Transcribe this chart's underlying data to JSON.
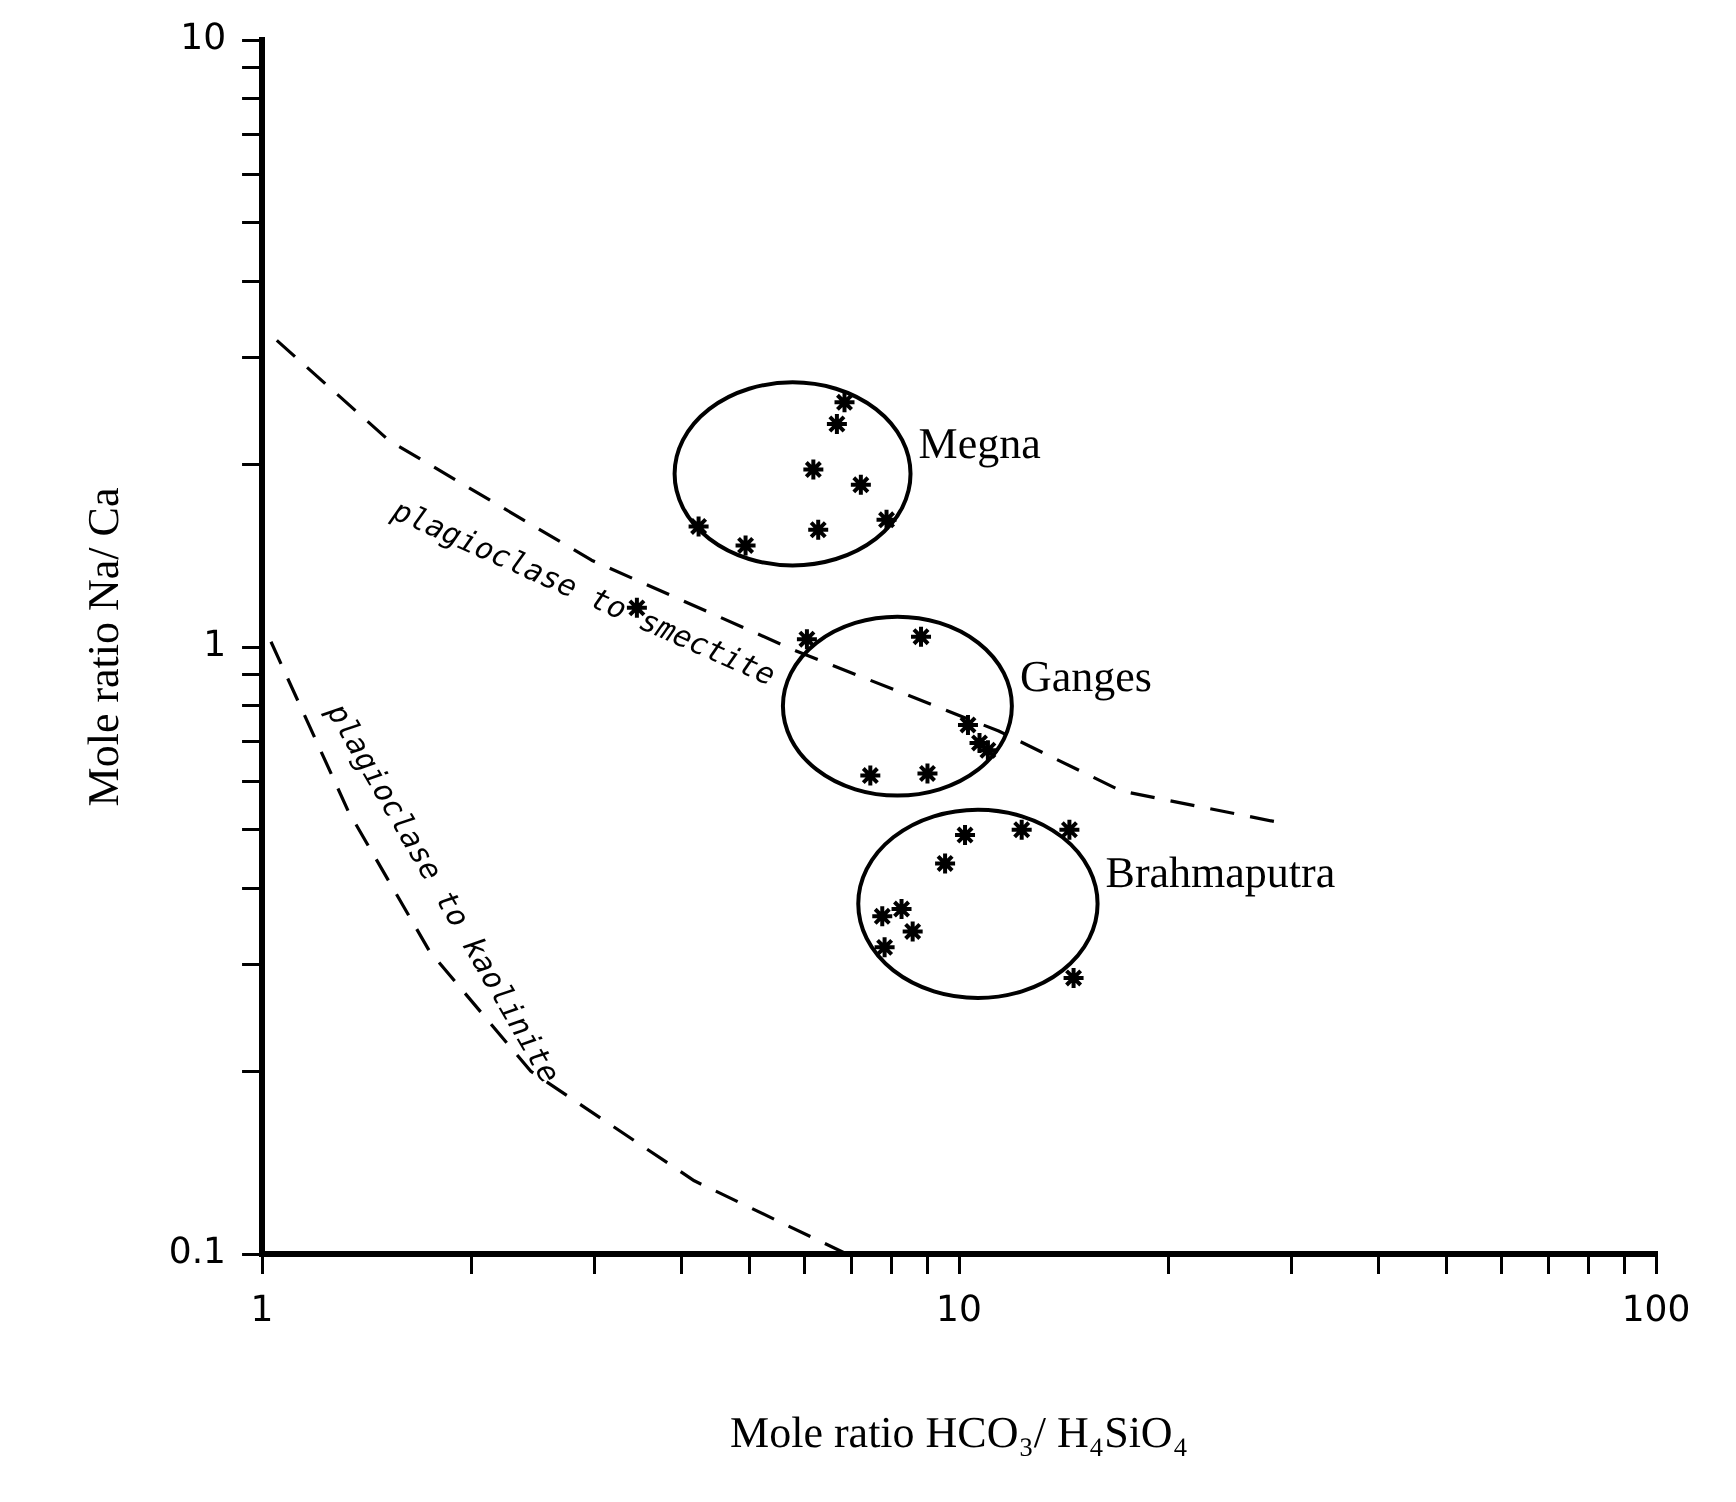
{
  "chart_data": {
    "type": "scatter",
    "xlabel": "Mole ratio HCO₃/ H₄SiO₄",
    "ylabel": "Mole ratio Na/ Ca",
    "log": "xy",
    "grid": false,
    "legend": false,
    "marker": "cross",
    "xlim": [
      1,
      100
    ],
    "ylim": [
      0.1,
      10
    ],
    "xticks": [
      1,
      {
        "value": 2,
        "label": null
      },
      {
        "value": 3,
        "label": null
      },
      {
        "value": 4,
        "label": null
      },
      {
        "value": 5,
        "label": null
      },
      {
        "value": 6,
        "label": null
      },
      {
        "value": 7,
        "label": null
      },
      {
        "value": 8,
        "label": null
      },
      {
        "value": 9,
        "label": null
      },
      10,
      {
        "value": 20,
        "label": null
      },
      {
        "value": 30,
        "label": null
      },
      {
        "value": 40,
        "label": null
      },
      {
        "value": 50,
        "label": null
      },
      {
        "value": 60,
        "label": null
      },
      {
        "value": 70,
        "label": null
      },
      {
        "value": 80,
        "label": null
      },
      {
        "value": 90,
        "label": null
      },
      100
    ],
    "yticks": [
      0.1,
      {
        "value": 0.2,
        "label": null
      },
      {
        "value": 0.3,
        "label": null
      },
      {
        "value": 0.4,
        "label": null
      },
      {
        "value": 0.5,
        "label": null
      },
      {
        "value": 0.6,
        "label": null
      },
      {
        "value": 0.7,
        "label": null
      },
      {
        "value": 0.8,
        "label": null
      },
      {
        "value": 0.9,
        "label": null
      },
      1,
      {
        "value": 2,
        "label": null
      },
      {
        "value": 3,
        "label": null
      },
      {
        "value": 4,
        "label": null
      },
      {
        "value": 5,
        "label": null
      },
      {
        "value": 6,
        "label": null
      },
      {
        "value": 7,
        "label": null
      },
      {
        "value": 8,
        "label": null
      },
      {
        "value": 9,
        "label": null
      },
      10
    ],
    "series": [
      {
        "name": "Megna",
        "color": "#000000",
        "x": [
          6.85,
          6.68,
          6.18,
          7.23,
          4.23,
          4.94,
          6.28,
          7.87
        ],
        "values": [
          2.53,
          2.33,
          1.96,
          1.85,
          1.58,
          1.47,
          1.56,
          1.62
        ]
      },
      {
        "name": "Ganges",
        "color": "#000000",
        "x": [
          6.05,
          8.82,
          10.3,
          11.0,
          10.7,
          7.46,
          9.01
        ],
        "values": [
          1.03,
          1.04,
          0.744,
          0.676,
          0.695,
          0.614,
          0.619
        ]
      },
      {
        "name": "Brahmaputra",
        "color": "#000000",
        "x": [
          10.2,
          12.3,
          14.4,
          9.55,
          8.27,
          7.76,
          8.58,
          7.82,
          14.6
        ],
        "values": [
          0.49,
          0.5,
          0.5,
          0.44,
          0.37,
          0.36,
          0.34,
          0.32,
          0.285
        ]
      },
      {
        "color": "#000000",
        "x": [
          3.45
        ],
        "values": [
          1.16
        ]
      },
      {
        "name": "plagioclase to smectite",
        "type": "line",
        "color": "#000000",
        "line_style": "dashed",
        "marker": "none",
        "x": [
          1.05,
          1.52,
          2.97,
          5.84,
          11.4,
          17.1,
          28.3
        ],
        "values": [
          3.2,
          2.19,
          1.39,
          0.985,
          0.727,
          0.579,
          0.516
        ]
      },
      {
        "name": "plagioclase to kaolinite",
        "type": "line",
        "color": "#000000",
        "line_style": "dashed",
        "marker": "none",
        "x": [
          1.03,
          1.33,
          1.74,
          2.43,
          4.17,
          6.9
        ],
        "values": [
          1.02,
          0.536,
          0.315,
          0.2,
          0.132,
          0.1
        ]
      }
    ]
  }
}
